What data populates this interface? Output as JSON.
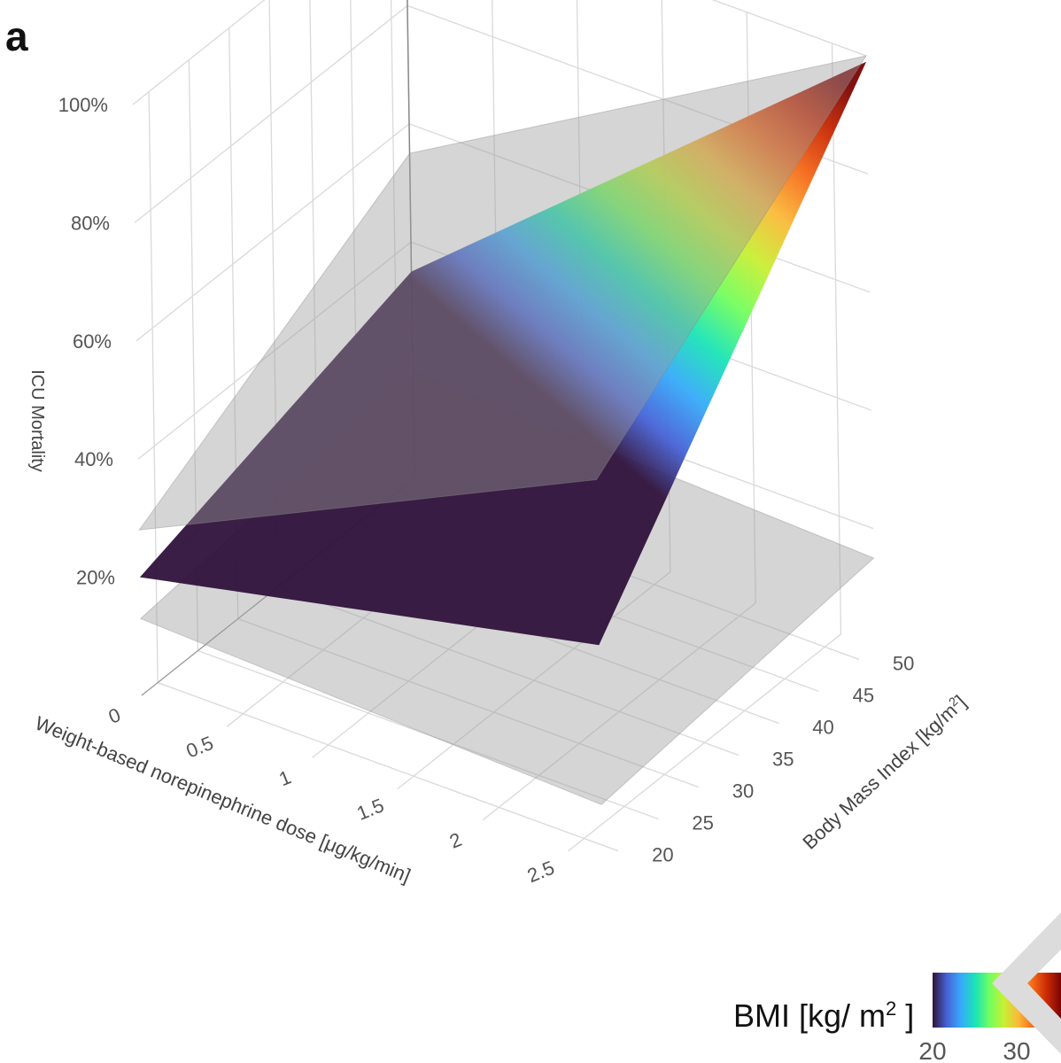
{
  "panel_label": "a",
  "chart_data": {
    "type": "surface",
    "z_axis": {
      "title": "ICU Mortality",
      "ticks": [
        "100%",
        "80%",
        "60%",
        "40%",
        "20%"
      ],
      "range": [
        0.1,
        1.0
      ]
    },
    "x_axis": {
      "title": "Weight-based norepinephrine dose [μg/kg/min]",
      "ticks": [
        "0",
        "0.5",
        "1",
        "1.5",
        "2",
        "2.5"
      ],
      "range": [
        0,
        2.7
      ]
    },
    "y_axis": {
      "title": "Body Mass Index [kg/m²]",
      "ticks": [
        "20",
        "25",
        "30",
        "35",
        "40",
        "45",
        "50"
      ],
      "range": [
        18,
        52
      ]
    },
    "surfaces": [
      {
        "role": "estimate",
        "colorscale": "turbo",
        "color_by": "BMI",
        "corners": {
          "dose0_bmi20": 0.2,
          "dose0_bmi50": 0.35,
          "dose2.7_bmi20": 0.37,
          "dose2.7_bmi50": 0.99
        }
      },
      {
        "role": "upper band",
        "color": "#9a9a9a",
        "corners": {
          "dose0_bmi20": 0.28,
          "dose0_bmi50": 0.55,
          "dose2.7_bmi20": 0.65,
          "dose2.7_bmi50": 1.0
        }
      },
      {
        "role": "lower band",
        "color": "#9a9a9a",
        "corners": {
          "dose0_bmi20": 0.13,
          "dose0_bmi50": 0.18,
          "dose2.7_bmi20": 0.1,
          "dose2.7_bmi50": 0.15
        }
      }
    ],
    "colorbar": {
      "title_main": "BMI [kg/ m",
      "title_sup": "2",
      "title_end": " ]",
      "ticks": [
        "20",
        "30"
      ],
      "range": [
        20,
        50
      ],
      "colors": [
        "#30123b",
        "#4662d7",
        "#36aaf9",
        "#1ae4b6",
        "#72fe5e",
        "#c8ef34",
        "#faba39",
        "#f66b19",
        "#ca2a04",
        "#7a0403"
      ]
    }
  }
}
